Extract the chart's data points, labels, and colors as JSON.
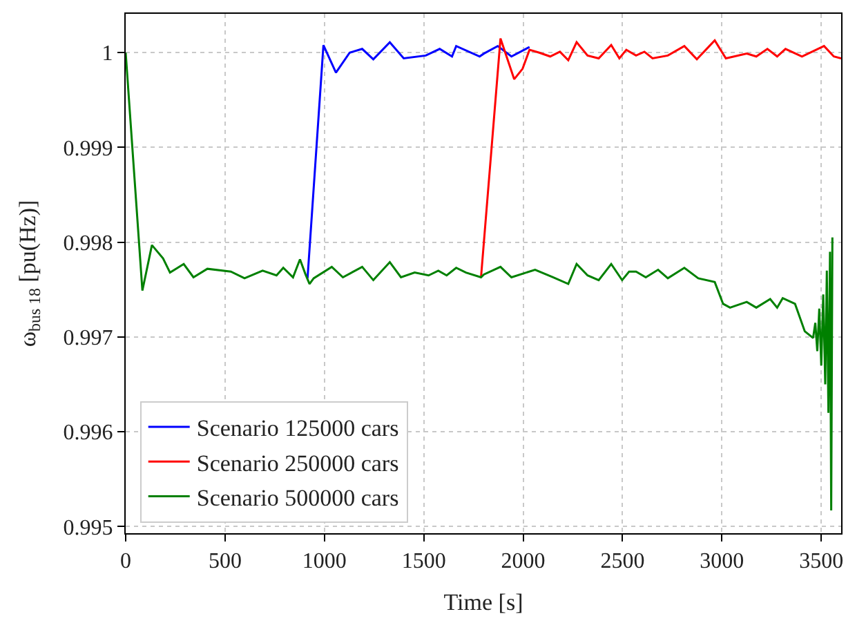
{
  "chart_data": {
    "type": "line",
    "xlabel": "Time [s]",
    "ylabel": "ω$_{bus 18}$ [pu(Hz)]",
    "xlim": [
      0,
      3600
    ],
    "xticks": [
      0,
      500,
      1000,
      1500,
      2000,
      2500,
      3000,
      3500
    ],
    "ylim": [
      0.99493,
      1.00041
    ],
    "yticks": [
      0.995,
      0.996,
      0.997,
      0.998,
      0.999,
      {
        "value": 1,
        "label": "1"
      }
    ],
    "grid": true,
    "legend": "bottom left",
    "marker": "none",
    "line_style": "solid",
    "series": [
      {
        "name": "Scenario 125000 cars",
        "color": "#0000ff",
        "x": [
          915,
          995,
          1058,
          1127,
          1190,
          1246,
          1329,
          1399,
          1510,
          1580,
          1642,
          1663,
          1781,
          1802,
          1872,
          1941,
          2032
        ],
        "values": [
          0.99762,
          1.00008,
          0.99979,
          1.0,
          1.00004,
          0.99993,
          1.00011,
          0.99994,
          0.99997,
          1.00004,
          0.99996,
          1.00007,
          0.99996,
          0.99999,
          1.00007,
          0.99996,
          1.00006
        ]
      },
      {
        "name": "Scenario 250000 cars",
        "color": "#ff0000",
        "x": [
          1788,
          1886,
          1955,
          1997,
          2032,
          2081,
          2136,
          2185,
          2227,
          2269,
          2324,
          2380,
          2443,
          2484,
          2519,
          2568,
          2610,
          2651,
          2728,
          2811,
          2874,
          2964,
          3020,
          3125,
          3173,
          3229,
          3278,
          3320,
          3403,
          3514,
          3563,
          3600
        ],
        "values": [
          0.99763,
          1.00015,
          0.99972,
          0.99983,
          1.00003,
          1.0,
          0.99996,
          1.00001,
          0.99992,
          1.00011,
          0.99997,
          0.99994,
          1.00008,
          0.99994,
          1.00003,
          0.99997,
          1.00001,
          0.99994,
          0.99997,
          1.00007,
          0.99993,
          1.00013,
          0.99994,
          0.99999,
          0.99996,
          1.00004,
          0.99996,
          1.00004,
          0.99996,
          1.00007,
          0.99996,
          0.99994
        ]
      },
      {
        "name": "Scenario 500000 cars",
        "color": "#008000",
        "x": [
          0,
          84,
          132,
          188,
          223,
          292,
          341,
          411,
          529,
          598,
          689,
          759,
          793,
          842,
          877,
          905,
          925,
          946,
          1037,
          1093,
          1190,
          1246,
          1329,
          1385,
          1454,
          1524,
          1573,
          1615,
          1663,
          1712,
          1788,
          1802,
          1886,
          1941,
          2060,
          2150,
          2227,
          2269,
          2324,
          2380,
          2443,
          2498,
          2533,
          2568,
          2617,
          2679,
          2728,
          2811,
          2881,
          2964,
          3006,
          3041,
          3125,
          3173,
          3243,
          3278,
          3306,
          3368,
          3417,
          3459,
          3470,
          3480,
          3490,
          3500,
          3510,
          3520,
          3528,
          3536,
          3544,
          3550,
          3556
        ],
        "values": [
          1.0,
          0.99749,
          0.99797,
          0.99783,
          0.99768,
          0.99777,
          0.99763,
          0.99772,
          0.99769,
          0.99762,
          0.9977,
          0.99765,
          0.99773,
          0.99763,
          0.99782,
          0.99766,
          0.99756,
          0.99762,
          0.99774,
          0.99763,
          0.99774,
          0.9976,
          0.99779,
          0.99763,
          0.99768,
          0.99765,
          0.9977,
          0.99765,
          0.99773,
          0.99768,
          0.99763,
          0.99766,
          0.99774,
          0.99763,
          0.99771,
          0.99763,
          0.99756,
          0.99777,
          0.99765,
          0.9976,
          0.99777,
          0.9976,
          0.99769,
          0.99769,
          0.99763,
          0.99771,
          0.99762,
          0.99773,
          0.99762,
          0.99758,
          0.99735,
          0.99731,
          0.99737,
          0.99731,
          0.9974,
          0.99731,
          0.99741,
          0.99735,
          0.99706,
          0.99699,
          0.99715,
          0.99685,
          0.9973,
          0.9967,
          0.99745,
          0.9965,
          0.9977,
          0.9962,
          0.9979,
          0.99517,
          0.99805
        ]
      }
    ]
  }
}
